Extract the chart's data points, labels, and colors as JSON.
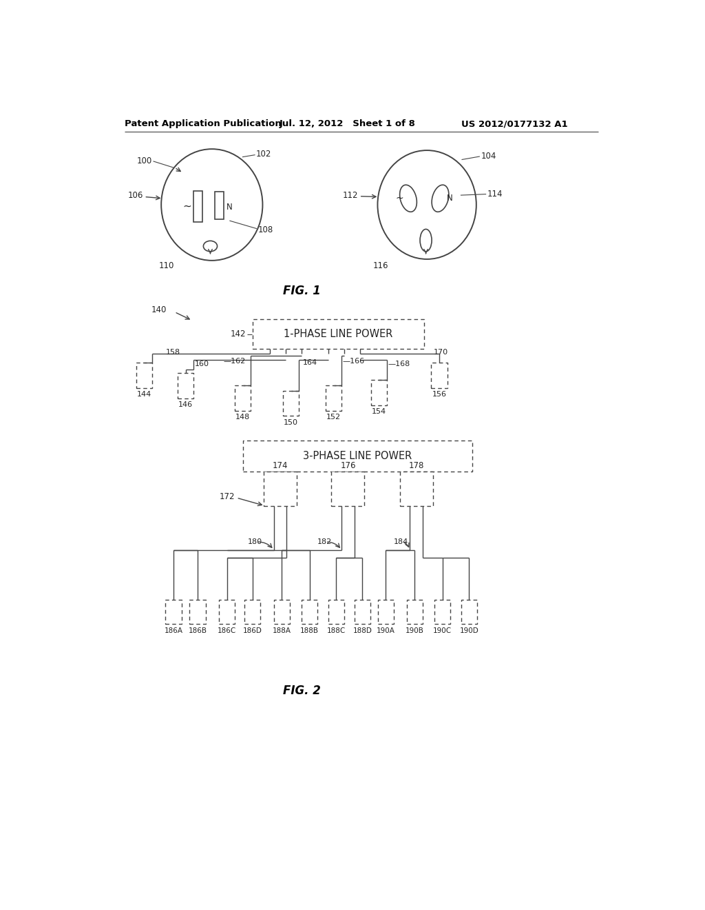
{
  "bg_color": "#ffffff",
  "header_left": "Patent Application Publication",
  "header_mid": "Jul. 12, 2012   Sheet 1 of 8",
  "header_right": "US 2012/0177132 A1",
  "line_color": "#444444",
  "text_color": "#222222"
}
